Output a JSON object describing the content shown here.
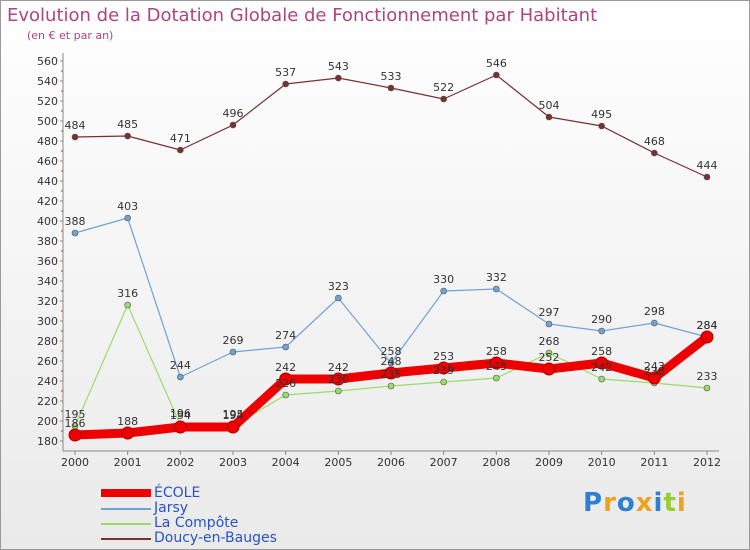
{
  "chart_data": {
    "type": "line",
    "title": "Evolution de la Dotation Globale de Fonctionnement par Habitant",
    "subtitle": "(en € et par an)",
    "x": [
      "2000",
      "2001",
      "2002",
      "2003",
      "2004",
      "2005",
      "2006",
      "2007",
      "2008",
      "2009",
      "2010",
      "2011",
      "2012"
    ],
    "ylim": [
      180,
      560
    ],
    "yticks": [
      180,
      200,
      220,
      240,
      260,
      280,
      300,
      320,
      340,
      360,
      380,
      400,
      420,
      440,
      460,
      480,
      500,
      520,
      540,
      560
    ],
    "grid": false,
    "legend_position": "bottom-left",
    "series": [
      {
        "name": "ÉCOLE",
        "color": "#ee0000",
        "values": [
          186,
          188,
          194,
          194,
          242,
          242,
          248,
          253,
          258,
          252,
          258,
          243,
          284
        ]
      },
      {
        "name": "Jarsy",
        "color": "#6fa3d6",
        "values": [
          388,
          403,
          244,
          269,
          274,
          323,
          258,
          330,
          332,
          297,
          290,
          298,
          284
        ]
      },
      {
        "name": "La Compôte",
        "color": "#99dd66",
        "values": [
          195,
          316,
          196,
          195,
          226,
          230,
          235,
          239,
          243,
          268,
          242,
          238,
          233
        ]
      },
      {
        "name": "Doucy-en-Bauges",
        "color": "#7a3030",
        "values": [
          484,
          485,
          471,
          496,
          537,
          543,
          533,
          522,
          546,
          504,
          495,
          468,
          444
        ]
      }
    ]
  },
  "brand": {
    "letters": [
      {
        "char": "P",
        "color": "#2e7fd0"
      },
      {
        "char": "r",
        "color": "#f0a020"
      },
      {
        "char": "o",
        "color": "#2e7fd0"
      },
      {
        "char": "x",
        "color": "#f0a020"
      },
      {
        "char": "i",
        "color": "#2e7fd0"
      },
      {
        "char": "t",
        "color": "#99cc33"
      },
      {
        "char": "i",
        "color": "#f0a020"
      }
    ]
  }
}
